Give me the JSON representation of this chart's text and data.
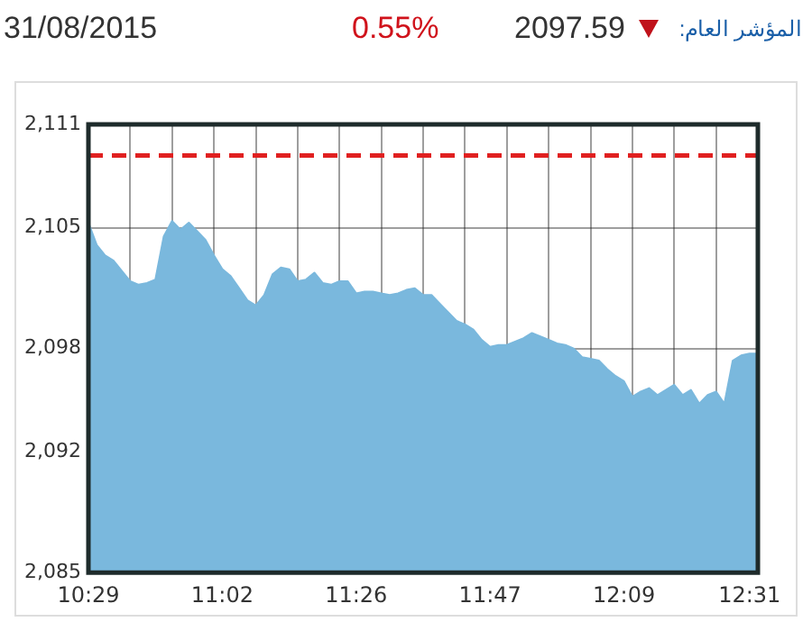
{
  "chart_data": {
    "type": "area",
    "title": "المؤشر العام:",
    "annotations": [
      "31/08/2015",
      "0.55%",
      "2097.59"
    ],
    "categories": [
      "10:29",
      null,
      null,
      null,
      null,
      null,
      null,
      null,
      null,
      null,
      null,
      null,
      null,
      null,
      null,
      null,
      "11:02",
      null,
      null,
      null,
      null,
      null,
      null,
      null,
      null,
      null,
      null,
      null,
      null,
      null,
      null,
      null,
      "11:26",
      null,
      null,
      null,
      null,
      null,
      null,
      null,
      null,
      null,
      null,
      null,
      null,
      null,
      null,
      null,
      "11:47",
      null,
      null,
      null,
      null,
      null,
      null,
      null,
      null,
      null,
      null,
      null,
      null,
      null,
      null,
      null,
      "12:09",
      null,
      null,
      null,
      null,
      null,
      null,
      null,
      null,
      null,
      null,
      null,
      null,
      null,
      null,
      "12:31",
      null
    ],
    "series": [
      {
        "color": "#7ab8dd",
        "values": [
          2105.3,
          2104.0,
          2103.4,
          2103.1,
          2102.5,
          2101.9,
          2101.7,
          2101.8,
          2102.0,
          2104.5,
          2105.4,
          2104.9,
          2105.3,
          2104.8,
          2104.3,
          2103.4,
          2102.6,
          2102.2,
          2101.5,
          2100.8,
          2100.5,
          2101.1,
          2102.3,
          2102.7,
          2102.6,
          2101.9,
          2102.0,
          2102.4,
          2101.8,
          2101.7,
          2101.9,
          2101.9,
          2101.2,
          2101.3,
          2101.3,
          2101.2,
          2101.1,
          2101.2,
          2101.4,
          2101.5,
          2101.1,
          2101.1,
          2100.6,
          2100.1,
          2099.6,
          2099.4,
          2099.1,
          2098.5,
          2098.1,
          2098.2,
          2098.2,
          2098.4,
          2098.6,
          2098.9,
          2098.7,
          2098.5,
          2098.3,
          2098.2,
          2098.0,
          2097.5,
          2097.4,
          2097.3,
          2096.8,
          2096.4,
          2096.1,
          2095.2,
          2095.5,
          2095.7,
          2095.3,
          2095.6,
          2095.9,
          2095.3,
          2095.6,
          2094.8,
          2095.3,
          2095.5,
          2094.8,
          2097.3,
          2097.6,
          2097.7,
          2097.7
        ]
      }
    ],
    "ylim": [
      2085,
      2111
    ],
    "yticks": [
      {
        "value": 2085,
        "label": "2,085"
      },
      {
        "value": 2092,
        "label": "2,092"
      },
      {
        "value": 2098,
        "label": "2,098"
      },
      {
        "value": 2105,
        "label": "2,105"
      },
      {
        "value": 2111,
        "label": "2,111"
      }
    ],
    "ref_lines": [
      {
        "axis": "y",
        "value": 2109.2,
        "color": "#e02020",
        "line_style": "dashed"
      }
    ],
    "grid": true,
    "legend": false,
    "marker": "none"
  }
}
